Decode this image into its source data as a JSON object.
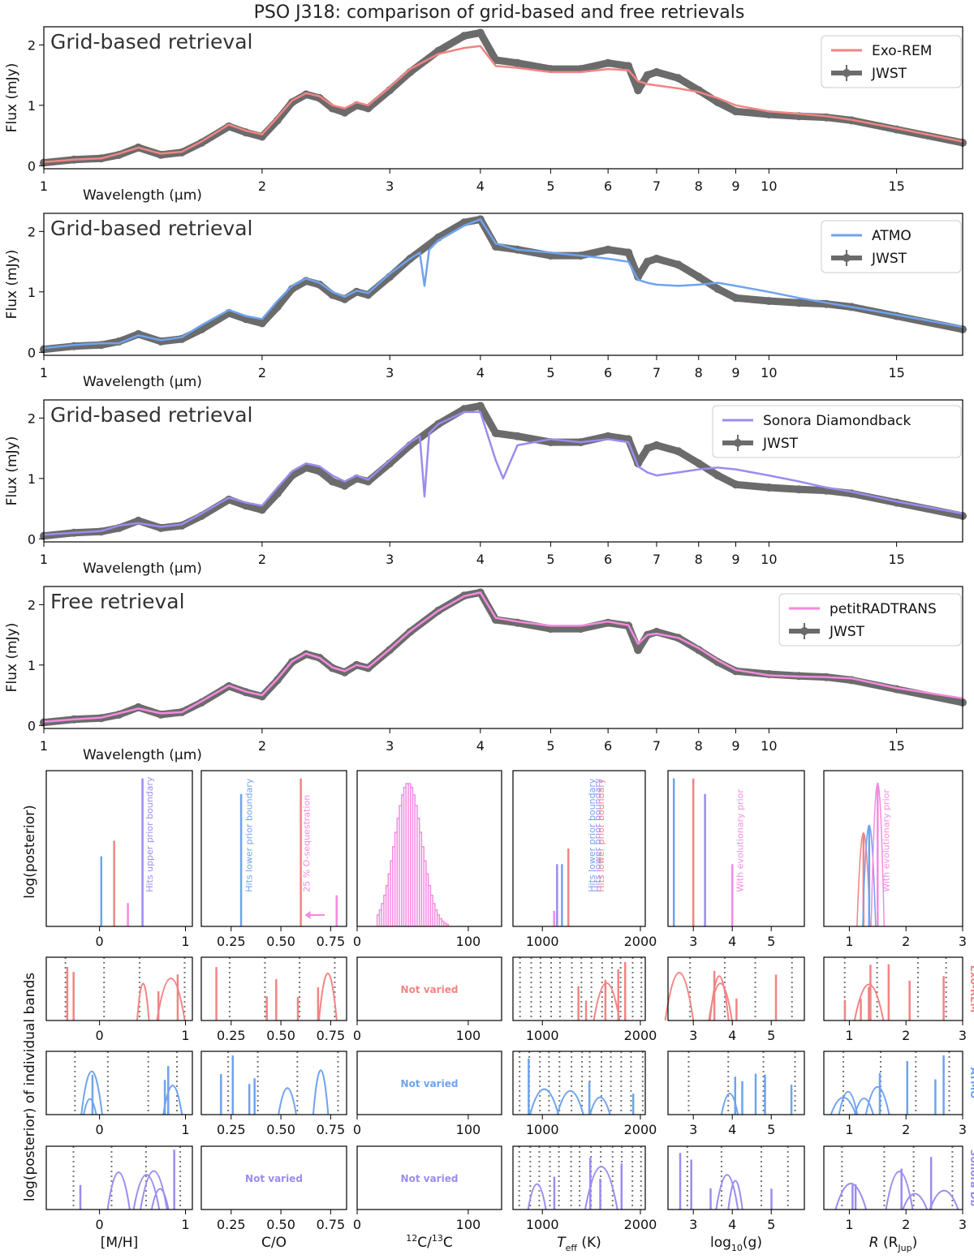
{
  "figure": {
    "title": "PSO J318: comparison of grid-based and free retrievals"
  },
  "colors": {
    "jwst": "#6b6b6b",
    "exorem": "#f28484",
    "atmo": "#6fa3ef",
    "sonora": "#9b8cf0",
    "prt": "#f58ae0"
  },
  "chart_data": [
    {
      "type": "line",
      "id": "spectrum-exorem",
      "panel_label": "Grid-based retrieval",
      "xlabel": "Wavelength (µm)",
      "ylabel": "Flux (mJy)",
      "xscale": "log",
      "xlim": [
        1,
        18.5
      ],
      "ylim": [
        -0.05,
        2.3
      ],
      "xticks": [
        1,
        2,
        3,
        4,
        5,
        6,
        7,
        8,
        9,
        10,
        15
      ],
      "yticks": [
        0,
        1,
        2
      ],
      "legend": [
        "Exo-REM",
        "JWST"
      ],
      "legend_position": "top-right",
      "series": [
        {
          "name": "JWST",
          "x": [
            1.0,
            1.1,
            1.2,
            1.27,
            1.35,
            1.45,
            1.55,
            1.65,
            1.8,
            1.9,
            2.0,
            2.1,
            2.2,
            2.3,
            2.4,
            2.5,
            2.6,
            2.7,
            2.8,
            3.0,
            3.2,
            3.5,
            3.8,
            4.0,
            4.2,
            4.5,
            5.0,
            5.5,
            6.0,
            6.4,
            6.6,
            6.8,
            7.0,
            7.5,
            8.0,
            8.5,
            9.0,
            10.0,
            11.0,
            12.0,
            13.0,
            15.0,
            18.5
          ],
          "y": [
            0.05,
            0.1,
            0.12,
            0.18,
            0.3,
            0.18,
            0.22,
            0.38,
            0.65,
            0.55,
            0.48,
            0.75,
            1.05,
            1.18,
            1.12,
            0.95,
            0.88,
            1.0,
            0.95,
            1.25,
            1.55,
            1.9,
            2.15,
            2.2,
            1.75,
            1.7,
            1.6,
            1.6,
            1.7,
            1.65,
            1.25,
            1.5,
            1.55,
            1.45,
            1.25,
            1.05,
            0.9,
            0.85,
            0.82,
            0.8,
            0.75,
            0.6,
            0.38
          ]
        },
        {
          "name": "Exo-REM",
          "x": [
            1.0,
            1.1,
            1.2,
            1.27,
            1.35,
            1.45,
            1.55,
            1.65,
            1.8,
            1.9,
            2.0,
            2.1,
            2.2,
            2.3,
            2.4,
            2.5,
            2.6,
            2.7,
            2.8,
            3.0,
            3.2,
            3.5,
            3.8,
            4.0,
            4.2,
            4.5,
            5.0,
            5.5,
            6.0,
            6.4,
            6.6,
            6.8,
            7.0,
            7.5,
            8.0,
            8.5,
            9.0,
            10.0,
            11.0,
            12.0,
            13.0,
            15.0,
            18.5
          ],
          "y": [
            0.06,
            0.1,
            0.12,
            0.2,
            0.3,
            0.2,
            0.23,
            0.4,
            0.68,
            0.58,
            0.52,
            0.8,
            1.08,
            1.2,
            1.15,
            1.0,
            0.95,
            1.05,
            1.0,
            1.3,
            1.6,
            1.85,
            1.95,
            1.98,
            1.65,
            1.62,
            1.55,
            1.55,
            1.6,
            1.58,
            1.4,
            1.35,
            1.33,
            1.28,
            1.22,
            1.12,
            1.0,
            0.9,
            0.86,
            0.82,
            0.76,
            0.62,
            0.4
          ]
        }
      ]
    },
    {
      "type": "line",
      "id": "spectrum-atmo",
      "panel_label": "Grid-based retrieval",
      "xlabel": "Wavelength (µm)",
      "ylabel": "Flux (mJy)",
      "xscale": "log",
      "xlim": [
        1,
        18.5
      ],
      "ylim": [
        -0.05,
        2.3
      ],
      "xticks": [
        1,
        2,
        3,
        4,
        5,
        6,
        7,
        8,
        9,
        10,
        15
      ],
      "yticks": [
        0,
        1,
        2
      ],
      "legend": [
        "ATMO",
        "JWST"
      ],
      "legend_position": "top-right",
      "series": [
        {
          "name": "JWST",
          "x": [
            1.0,
            1.1,
            1.2,
            1.27,
            1.35,
            1.45,
            1.55,
            1.65,
            1.8,
            1.9,
            2.0,
            2.1,
            2.2,
            2.3,
            2.4,
            2.5,
            2.6,
            2.7,
            2.8,
            3.0,
            3.2,
            3.5,
            3.8,
            4.0,
            4.2,
            4.5,
            5.0,
            5.5,
            6.0,
            6.4,
            6.6,
            6.8,
            7.0,
            7.5,
            8.0,
            8.5,
            9.0,
            10.0,
            11.0,
            12.0,
            13.0,
            15.0,
            18.5
          ],
          "y": [
            0.05,
            0.1,
            0.12,
            0.18,
            0.3,
            0.18,
            0.22,
            0.38,
            0.65,
            0.55,
            0.48,
            0.75,
            1.05,
            1.18,
            1.12,
            0.95,
            0.88,
            1.0,
            0.95,
            1.25,
            1.55,
            1.9,
            2.15,
            2.2,
            1.75,
            1.7,
            1.6,
            1.6,
            1.7,
            1.65,
            1.25,
            1.5,
            1.55,
            1.45,
            1.25,
            1.05,
            0.9,
            0.85,
            0.82,
            0.8,
            0.75,
            0.6,
            0.38
          ]
        },
        {
          "name": "ATMO",
          "x": [
            1.0,
            1.1,
            1.2,
            1.27,
            1.35,
            1.45,
            1.55,
            1.65,
            1.8,
            1.9,
            2.0,
            2.1,
            2.2,
            2.3,
            2.4,
            2.5,
            2.6,
            2.7,
            2.8,
            3.0,
            3.2,
            3.3,
            3.35,
            3.4,
            3.5,
            3.8,
            4.0,
            4.2,
            4.5,
            5.0,
            5.5,
            6.0,
            6.4,
            6.6,
            6.8,
            7.0,
            7.5,
            8.0,
            8.5,
            9.0,
            10.0,
            11.0,
            12.0,
            13.0,
            15.0,
            18.5
          ],
          "y": [
            0.07,
            0.12,
            0.15,
            0.15,
            0.28,
            0.2,
            0.25,
            0.45,
            0.7,
            0.6,
            0.55,
            0.85,
            1.1,
            1.22,
            1.15,
            1.0,
            0.92,
            1.02,
            0.98,
            1.3,
            1.55,
            1.65,
            1.1,
            1.7,
            1.85,
            2.1,
            2.2,
            1.8,
            1.7,
            1.65,
            1.6,
            1.55,
            1.5,
            1.2,
            1.15,
            1.12,
            1.1,
            1.12,
            1.15,
            1.1,
            1.0,
            0.9,
            0.82,
            0.75,
            0.62,
            0.42
          ]
        }
      ]
    },
    {
      "type": "line",
      "id": "spectrum-sonora",
      "panel_label": "Grid-based retrieval",
      "xlabel": "Wavelength (µm)",
      "ylabel": "Flux (mJy)",
      "xscale": "log",
      "xlim": [
        1,
        18.5
      ],
      "ylim": [
        -0.05,
        2.3
      ],
      "xticks": [
        1,
        2,
        3,
        4,
        5,
        6,
        7,
        8,
        9,
        10,
        15
      ],
      "yticks": [
        0,
        1,
        2
      ],
      "legend": [
        "Sonora Diamondback",
        "JWST"
      ],
      "legend_position": "top-right",
      "series": [
        {
          "name": "JWST",
          "x": [
            1.0,
            1.1,
            1.2,
            1.27,
            1.35,
            1.45,
            1.55,
            1.65,
            1.8,
            1.9,
            2.0,
            2.1,
            2.2,
            2.3,
            2.4,
            2.5,
            2.6,
            2.7,
            2.8,
            3.0,
            3.2,
            3.5,
            3.8,
            4.0,
            4.2,
            4.5,
            5.0,
            5.5,
            6.0,
            6.4,
            6.6,
            6.8,
            7.0,
            7.5,
            8.0,
            8.5,
            9.0,
            10.0,
            11.0,
            12.0,
            13.0,
            15.0,
            18.5
          ],
          "y": [
            0.05,
            0.1,
            0.12,
            0.18,
            0.3,
            0.18,
            0.22,
            0.38,
            0.65,
            0.55,
            0.48,
            0.75,
            1.05,
            1.18,
            1.12,
            0.95,
            0.88,
            1.0,
            0.95,
            1.25,
            1.55,
            1.9,
            2.15,
            2.2,
            1.75,
            1.7,
            1.6,
            1.6,
            1.7,
            1.65,
            1.25,
            1.5,
            1.55,
            1.45,
            1.25,
            1.05,
            0.9,
            0.85,
            0.82,
            0.8,
            0.75,
            0.6,
            0.38
          ]
        },
        {
          "name": "Sonora Diamondback",
          "x": [
            1.0,
            1.1,
            1.2,
            1.27,
            1.35,
            1.45,
            1.55,
            1.65,
            1.8,
            1.9,
            2.0,
            2.1,
            2.2,
            2.3,
            2.4,
            2.5,
            2.6,
            2.7,
            2.8,
            3.0,
            3.2,
            3.3,
            3.35,
            3.4,
            3.5,
            3.8,
            4.0,
            4.2,
            4.3,
            4.5,
            5.0,
            5.5,
            6.0,
            6.4,
            6.6,
            6.8,
            7.0,
            7.5,
            8.0,
            8.5,
            9.0,
            10.0,
            11.0,
            12.0,
            13.0,
            15.0,
            18.5
          ],
          "y": [
            0.07,
            0.1,
            0.13,
            0.22,
            0.26,
            0.2,
            0.24,
            0.42,
            0.68,
            0.6,
            0.55,
            0.85,
            1.12,
            1.25,
            1.2,
            1.05,
            0.95,
            1.05,
            0.98,
            1.3,
            1.6,
            1.7,
            0.7,
            1.75,
            1.9,
            2.1,
            2.1,
            1.3,
            1.0,
            1.55,
            1.65,
            1.6,
            1.65,
            1.6,
            1.2,
            1.1,
            1.05,
            1.1,
            1.15,
            1.18,
            1.15,
            1.05,
            0.95,
            0.85,
            0.78,
            0.62,
            0.42
          ]
        }
      ]
    },
    {
      "type": "line",
      "id": "spectrum-prt",
      "panel_label": "Free retrieval",
      "xlabel": "Wavelength (µm)",
      "ylabel": "Flux (mJy)",
      "xscale": "log",
      "xlim": [
        1,
        18.5
      ],
      "ylim": [
        -0.05,
        2.3
      ],
      "xticks": [
        1,
        2,
        3,
        4,
        5,
        6,
        7,
        8,
        9,
        10,
        15
      ],
      "yticks": [
        0,
        1,
        2
      ],
      "legend": [
        "petitRADTRANS",
        "JWST"
      ],
      "legend_position": "top-right",
      "series": [
        {
          "name": "JWST",
          "x": [
            1.0,
            1.1,
            1.2,
            1.27,
            1.35,
            1.45,
            1.55,
            1.65,
            1.8,
            1.9,
            2.0,
            2.1,
            2.2,
            2.3,
            2.4,
            2.5,
            2.6,
            2.7,
            2.8,
            3.0,
            3.2,
            3.5,
            3.8,
            4.0,
            4.2,
            4.5,
            5.0,
            5.5,
            6.0,
            6.4,
            6.6,
            6.8,
            7.0,
            7.5,
            8.0,
            8.5,
            9.0,
            10.0,
            11.0,
            12.0,
            13.0,
            15.0,
            18.5
          ],
          "y": [
            0.05,
            0.1,
            0.12,
            0.18,
            0.3,
            0.18,
            0.22,
            0.38,
            0.65,
            0.55,
            0.48,
            0.75,
            1.05,
            1.18,
            1.12,
            0.95,
            0.88,
            1.0,
            0.95,
            1.25,
            1.55,
            1.9,
            2.15,
            2.2,
            1.75,
            1.7,
            1.6,
            1.6,
            1.7,
            1.65,
            1.25,
            1.5,
            1.55,
            1.45,
            1.25,
            1.05,
            0.9,
            0.85,
            0.82,
            0.8,
            0.75,
            0.6,
            0.38
          ]
        },
        {
          "name": "petitRADTRANS",
          "x": [
            1.0,
            1.1,
            1.2,
            1.27,
            1.35,
            1.45,
            1.55,
            1.65,
            1.8,
            1.9,
            2.0,
            2.1,
            2.2,
            2.3,
            2.4,
            2.5,
            2.6,
            2.7,
            2.8,
            3.0,
            3.2,
            3.5,
            3.8,
            4.0,
            4.2,
            4.5,
            5.0,
            5.5,
            6.0,
            6.4,
            6.6,
            6.8,
            7.0,
            7.5,
            8.0,
            8.5,
            9.0,
            10.0,
            11.0,
            12.0,
            13.0,
            15.0,
            18.5
          ],
          "y": [
            0.06,
            0.1,
            0.13,
            0.2,
            0.28,
            0.2,
            0.22,
            0.4,
            0.66,
            0.56,
            0.5,
            0.77,
            1.06,
            1.19,
            1.12,
            0.96,
            0.9,
            1.0,
            0.96,
            1.26,
            1.56,
            1.9,
            2.14,
            2.2,
            1.78,
            1.72,
            1.65,
            1.65,
            1.72,
            1.66,
            1.35,
            1.5,
            1.52,
            1.45,
            1.28,
            1.08,
            0.92,
            0.83,
            0.81,
            0.8,
            0.78,
            0.62,
            0.45
          ]
        }
      ]
    }
  ],
  "posterior": {
    "row_label_top": "log(posterior)",
    "row_label_bands": "log(posterior) of individual bands",
    "not_varied": "Not varied",
    "band_rows": [
      "Exo-REM",
      "ATMO",
      "Sonora Db"
    ],
    "params": [
      {
        "xlabel": "[M/H]",
        "xlim": [
          -0.62,
          1.08
        ],
        "xticks": [
          "0",
          "1"
        ],
        "xtick_values": [
          0,
          1
        ],
        "annotations": [
          "Hits upper prior boundary"
        ]
      },
      {
        "xlabel": "C/O",
        "xlim": [
          0.1,
          0.83
        ],
        "xticks": [
          "0.25",
          "0.50",
          "0.75"
        ],
        "xtick_values": [
          0.25,
          0.5,
          0.75
        ],
        "annotations": [
          "Hits lower prior boundary",
          "25 % O-sequestration"
        ]
      },
      {
        "xlabel": "12C/13C",
        "xlabel_sup": "12",
        "xlabel_mid": "C/",
        "xlabel_sup2": "13",
        "xlabel_end": "C",
        "xlim": [
          0,
          130
        ],
        "xticks": [
          "0",
          "100"
        ],
        "xtick_values": [
          0,
          100
        ],
        "annotations": []
      },
      {
        "xlabel": "Teff (K)",
        "xlabel_main": "T",
        "xlabel_sub": "eff",
        "xlabel_unit": " (K)",
        "xlim": [
          700,
          2050
        ],
        "xticks": [
          "1000",
          "2000"
        ],
        "xtick_values": [
          1000,
          2000
        ],
        "annotations": []
      },
      {
        "xlabel": "log10(g)",
        "xlabel_main": "log",
        "xlabel_sub": "10",
        "xlabel_end": "(g)",
        "xlim": [
          2.35,
          5.85
        ],
        "xticks": [
          "3",
          "4",
          "5"
        ],
        "xtick_values": [
          3,
          4,
          5
        ],
        "annotations": [
          "Hits lower prior boundary",
          "Hits lower prior boundary",
          "Hits lower prior boundary",
          "With evolutionary prior"
        ]
      },
      {
        "xlabel": "R (RJup)",
        "xlabel_main": "R",
        "xlabel_unit": " (R",
        "xlabel_sub": "Jup",
        "xlabel_end": ")",
        "xlim": [
          0.55,
          3.0
        ],
        "xticks": [
          "1",
          "2",
          "3"
        ],
        "xtick_values": [
          1,
          2,
          3
        ],
        "annotations": [
          "With evolutionary prior"
        ]
      }
    ],
    "peaks": {
      "mh": {
        "exorem": 0.17,
        "atmo": 0.02,
        "sonora": 0.5,
        "prt": 0.33
      },
      "co": {
        "exorem": 0.6,
        "atmo": 0.3,
        "prt": 0.78
      },
      "c13": {
        "prt_center": 45
      },
      "teff": {
        "exorem": 1265,
        "atmo": 1200,
        "sonora": 1150,
        "prt": 1120
      },
      "logg": {
        "exorem": 3.0,
        "atmo": 2.5,
        "sonora": 3.3,
        "prt": 4.0
      },
      "r": {
        "exorem": 1.25,
        "atmo": 1.35,
        "prt": 1.5
      }
    }
  }
}
